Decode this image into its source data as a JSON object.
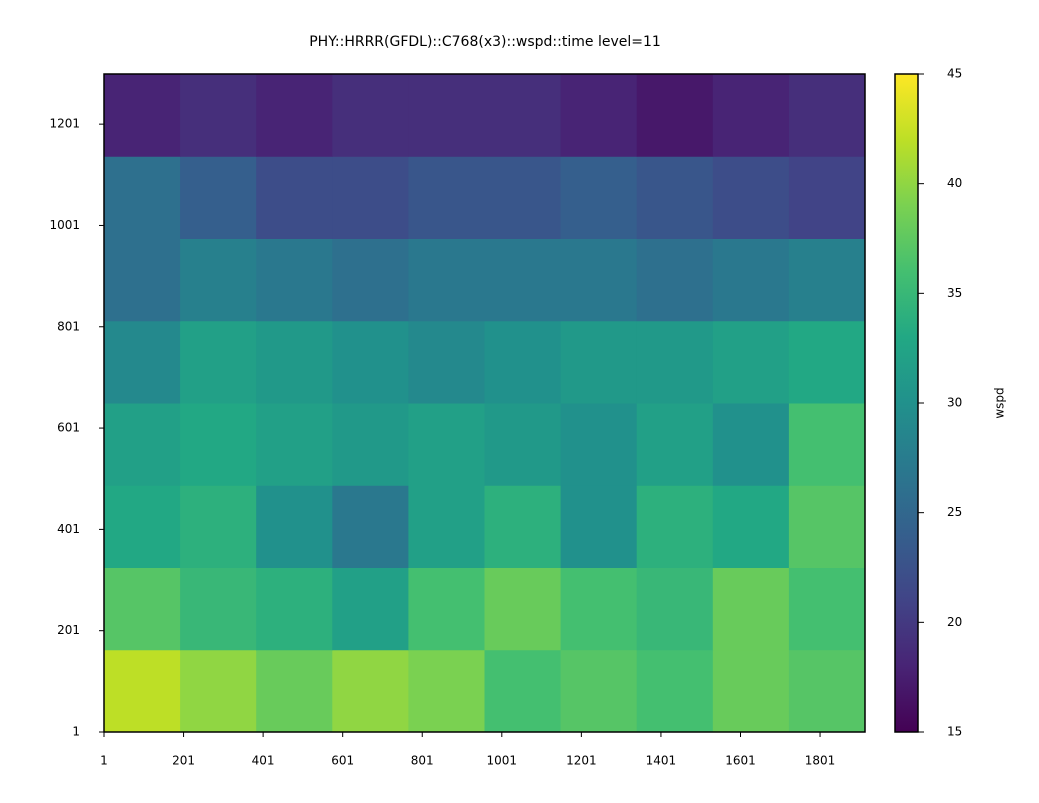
{
  "chart_data": {
    "type": "heatmap",
    "title": "PHY::HRRR(GFDL)::C768(x3)::wspd::time level=11",
    "colorbar_label": "wspd",
    "colormap": "viridis",
    "xlim": [
      1,
      1914
    ],
    "ylim": [
      1,
      1300
    ],
    "xticks": [
      1,
      201,
      401,
      601,
      801,
      1001,
      1201,
      1401,
      1601,
      1801
    ],
    "yticks": [
      1,
      201,
      401,
      601,
      801,
      1001,
      1201
    ],
    "clim": [
      15,
      45
    ],
    "cticks": [
      15,
      20,
      25,
      30,
      35,
      40,
      45
    ],
    "z": [
      [
        42,
        40,
        38,
        40,
        39,
        36,
        37,
        36,
        38,
        37
      ],
      [
        37,
        35,
        34,
        32,
        36,
        38,
        36,
        35,
        38,
        36
      ],
      [
        33,
        34,
        30,
        27,
        32,
        34,
        30,
        34,
        33,
        37
      ],
      [
        32,
        33,
        32,
        31,
        32,
        31,
        30,
        32,
        30,
        36
      ],
      [
        29,
        32,
        31,
        30,
        29,
        30,
        31,
        31,
        32,
        33
      ],
      [
        26,
        28,
        27,
        26,
        27,
        27,
        27,
        26,
        27,
        28
      ],
      [
        26,
        24,
        22,
        22,
        23,
        23,
        24,
        23,
        22,
        21
      ],
      [
        18,
        19,
        18,
        19,
        19,
        19,
        18,
        17,
        18,
        19
      ]
    ]
  }
}
